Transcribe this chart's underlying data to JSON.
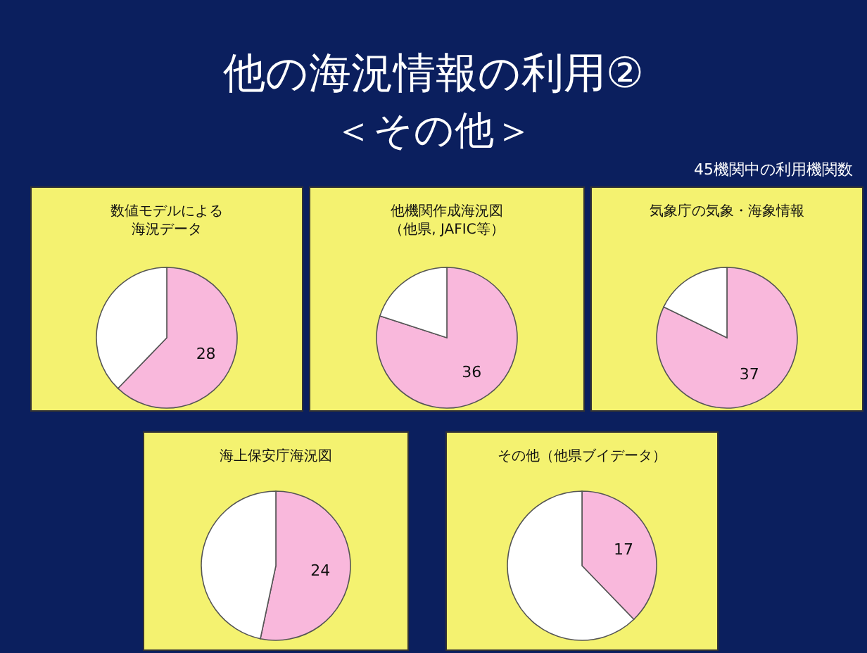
{
  "chart_data": [
    {
      "type": "other",
      "title": "他の海況情報の利用②",
      "subtitle": "＜その他＞",
      "annotations": [
        "45機関中の利用機関数"
      ]
    },
    {
      "type": "pie",
      "title": "数値モデルによる",
      "subtitle": "海況データ",
      "categories": [
        null,
        null
      ],
      "values": [
        28,
        17
      ],
      "colors": [
        "#f9b8dc",
        "#ffffff"
      ],
      "value_labels": [
        "28",
        null
      ]
    },
    {
      "type": "pie",
      "title": "他機関作成海況図",
      "subtitle": "（他県, JAFIC等）",
      "categories": [
        null,
        null
      ],
      "values": [
        36,
        9
      ],
      "colors": [
        "#f9b8dc",
        "#ffffff"
      ],
      "value_labels": [
        "36",
        null
      ]
    },
    {
      "type": "pie",
      "title": "気象庁の気象・海象情報",
      "categories": [
        null,
        null
      ],
      "values": [
        37,
        8
      ],
      "colors": [
        "#f9b8dc",
        "#ffffff"
      ],
      "value_labels": [
        "37",
        null
      ]
    },
    {
      "type": "pie",
      "title": "海上保安庁海況図",
      "categories": [
        null,
        null
      ],
      "values": [
        24,
        21
      ],
      "colors": [
        "#f9b8dc",
        "#ffffff"
      ],
      "value_labels": [
        "24",
        null
      ]
    },
    {
      "type": "pie",
      "title": "その他（他県ブイデータ）",
      "categories": [
        null,
        null
      ],
      "values": [
        17,
        28
      ],
      "colors": [
        "#f9b8dc",
        "#ffffff"
      ],
      "value_labels": [
        "17",
        null
      ]
    }
  ]
}
